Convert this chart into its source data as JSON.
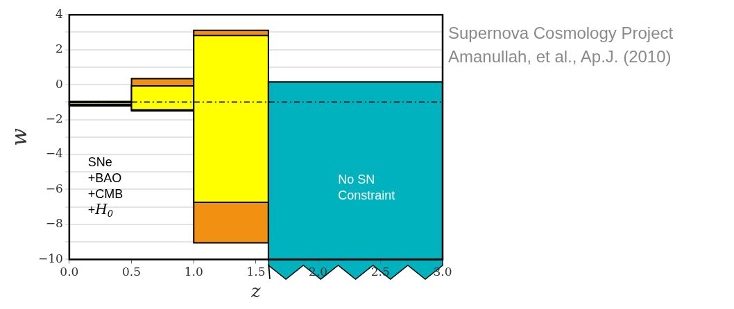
{
  "chart_data": {
    "type": "histogram",
    "xlabel": "z",
    "ylabel": "w",
    "bins": [
      0,
      0.5,
      1.0,
      1.6,
      3.0
    ],
    "series": [
      {
        "color": "#f29111",
        "values": [
          0.24,
          1.84,
          12.16,
          null
        ],
        "base": [
          -1.21,
          -1.5,
          -9.05,
          null
        ]
      },
      {
        "color": "#ffff00",
        "values": [
          0.1,
          1.37,
          9.54,
          null
        ],
        "base": [
          -1.14,
          -1.44,
          -6.73,
          null
        ]
      },
      {
        "color": "#00b2be",
        "values": [
          null,
          null,
          null,
          10.15
        ],
        "base": [
          null,
          null,
          null,
          -10
        ]
      }
    ],
    "xlim": [
      0,
      3
    ],
    "xticks": [
      {
        "value": 0,
        "label": "0.0"
      },
      {
        "value": 0.5,
        "label": "0.5"
      },
      {
        "value": 1,
        "label": "1.0"
      },
      {
        "value": 1.5,
        "label": "1.5"
      },
      {
        "value": 2,
        "label": "2.0"
      },
      {
        "value": 2.5,
        "label": "2.5"
      },
      {
        "value": 3,
        "label": "3.0"
      }
    ],
    "ylim": [
      -10,
      4
    ],
    "yticks": [
      -10,
      {
        "value": -9,
        "label": null
      },
      -8,
      {
        "value": -7,
        "label": null
      },
      -6,
      {
        "value": -5,
        "label": null
      },
      -4,
      {
        "value": -3,
        "label": null
      },
      -2,
      {
        "value": -1,
        "label": null
      },
      0,
      {
        "value": 1,
        "label": null
      },
      2,
      {
        "value": 3,
        "label": null
      },
      4
    ],
    "grid": "y",
    "ref_lines": [
      {
        "axis": "y",
        "value": -1,
        "line_style": "dashdot",
        "color": "#000000"
      }
    ],
    "annotations": [
      "SNe\n+BAO\n+CMB\n+H$_{0}$",
      "No SN\nConstraint",
      "Supernova Cosmology Project",
      "Amanullah, et al., Ap.J. (2010)"
    ]
  }
}
